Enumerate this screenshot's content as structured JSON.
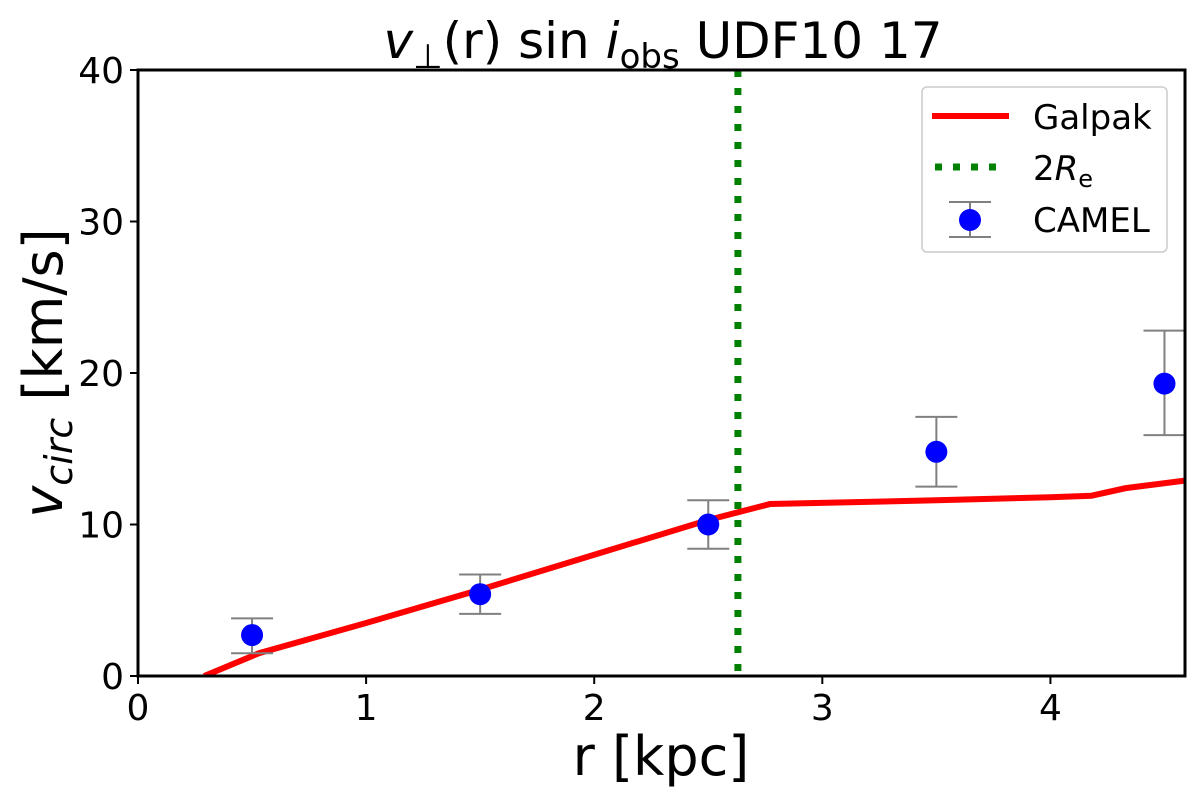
{
  "chart_data": {
    "type": "line",
    "title_parts": {
      "v": "v",
      "perp": "⊥",
      "mid": "(r) sin ",
      "i": "i",
      "obs": "obs",
      "rest": " UDF10 17"
    },
    "xlabel": "r [kpc]",
    "ylabel_parts": {
      "v": "v",
      "sub": "circ",
      "unit": " [km/s]"
    },
    "xlim": [
      0,
      4.59
    ],
    "ylim": [
      0,
      40
    ],
    "xticks": [
      0,
      1,
      2,
      3,
      4
    ],
    "yticks": [
      0,
      10,
      20,
      30,
      40
    ],
    "grid": false,
    "legend_placement": "top-right",
    "legend": {
      "galpak": "Galpak",
      "re_num": "2",
      "re_R": "R",
      "re_sub": "e",
      "camel": "CAMEL"
    },
    "galpak": {
      "name": "Galpak",
      "color": "#ff0000",
      "x": [
        0.29,
        0.53,
        1.0,
        1.5,
        2.0,
        2.5,
        2.77,
        3.5,
        4.0,
        4.18,
        4.33,
        4.59
      ],
      "y": [
        0.0,
        1.5,
        3.5,
        5.7,
        8.0,
        10.3,
        11.35,
        11.6,
        11.8,
        11.9,
        12.4,
        12.9
      ]
    },
    "two_re": {
      "x": 2.63,
      "color": "#008000"
    },
    "camel": {
      "name": "CAMEL",
      "color": "#0000ff",
      "errcolor": "#808080",
      "x": [
        0.5,
        1.5,
        2.5,
        3.5,
        4.5
      ],
      "y": [
        2.7,
        5.4,
        10.0,
        14.8,
        19.3
      ],
      "ylow": [
        1.5,
        4.1,
        8.4,
        12.5,
        15.9
      ],
      "yhigh": [
        3.8,
        6.7,
        11.6,
        17.1,
        22.8
      ]
    }
  }
}
